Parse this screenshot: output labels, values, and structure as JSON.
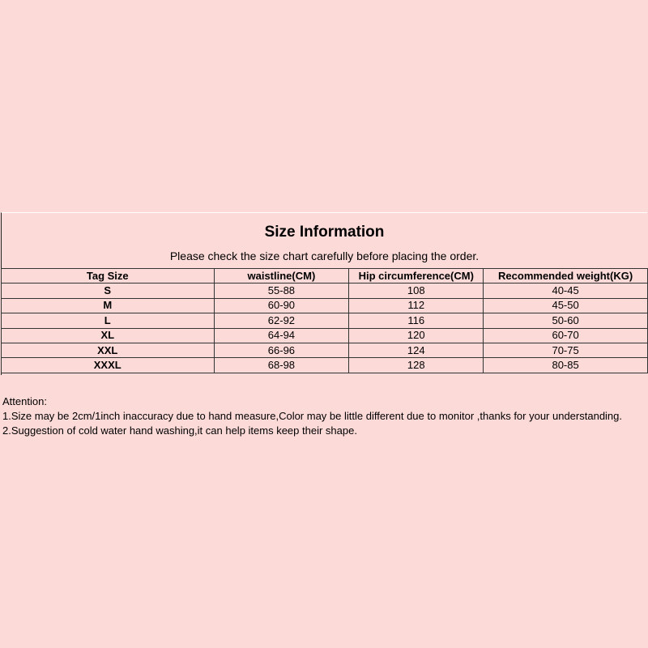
{
  "title": "Size Information",
  "subtitle": "Please check the size chart carefully before placing the order.",
  "table": {
    "headers": [
      "Tag Size",
      "waistline(CM)",
      "Hip circumference(CM)",
      "Recommended weight(KG)"
    ],
    "rows": [
      [
        "S",
        "55-88",
        "108",
        "40-45"
      ],
      [
        "M",
        "60-90",
        "112",
        "45-50"
      ],
      [
        "L",
        "62-92",
        "116",
        "50-60"
      ],
      [
        "XL",
        "64-94",
        "120",
        "60-70"
      ],
      [
        "XXL",
        "66-96",
        "124",
        "70-75"
      ],
      [
        "XXXL",
        "68-98",
        "128",
        "80-85"
      ]
    ]
  },
  "notes": [
    "Attention:",
    "1.Size may be 2cm/1inch inaccuracy due to hand measure,Color may be little different due to monitor ,thanks for your understanding.",
    "2.Suggestion of cold water hand washing,it can help items keep their shape."
  ],
  "colors": {
    "background": "#fcdad8",
    "border": "#333333"
  }
}
